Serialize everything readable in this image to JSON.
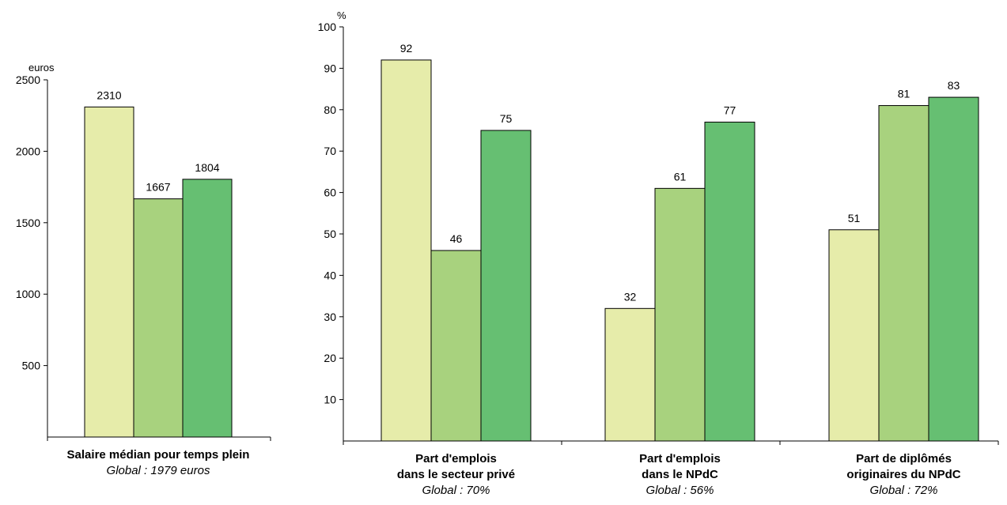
{
  "colors": {
    "series1": "#e6ecaa",
    "series2": "#a8d27e",
    "series3": "#66bf72",
    "axis": "#000000"
  },
  "chart_data": [
    {
      "type": "bar",
      "unit_label": "euros",
      "ylim": [
        0,
        2500
      ],
      "yticks": [
        500,
        1000,
        1500,
        2000,
        2500
      ],
      "categories": [
        {
          "lines": [
            "Salaire médian pour temps plein"
          ],
          "global": "Global : 1979 euros"
        }
      ],
      "series": [
        {
          "values": [
            2310
          ]
        },
        {
          "values": [
            1667
          ]
        },
        {
          "values": [
            1804
          ]
        }
      ],
      "grid": false,
      "legend": "none"
    },
    {
      "type": "bar",
      "unit_label": "%",
      "ylim": [
        0,
        100
      ],
      "yticks": [
        10,
        20,
        30,
        40,
        50,
        60,
        70,
        80,
        90,
        100
      ],
      "categories": [
        {
          "lines": [
            "Part d'emplois",
            "dans le secteur privé"
          ],
          "global": "Global : 70%"
        },
        {
          "lines": [
            "Part d'emplois",
            "dans le NPdC"
          ],
          "global": "Global : 56%"
        },
        {
          "lines": [
            "Part de diplômés",
            "originaires du NPdC"
          ],
          "global": "Global : 72%"
        }
      ],
      "series": [
        {
          "values": [
            92,
            32,
            51
          ]
        },
        {
          "values": [
            46,
            61,
            81
          ]
        },
        {
          "values": [
            75,
            77,
            83
          ]
        }
      ],
      "grid": false,
      "legend": "none"
    }
  ]
}
